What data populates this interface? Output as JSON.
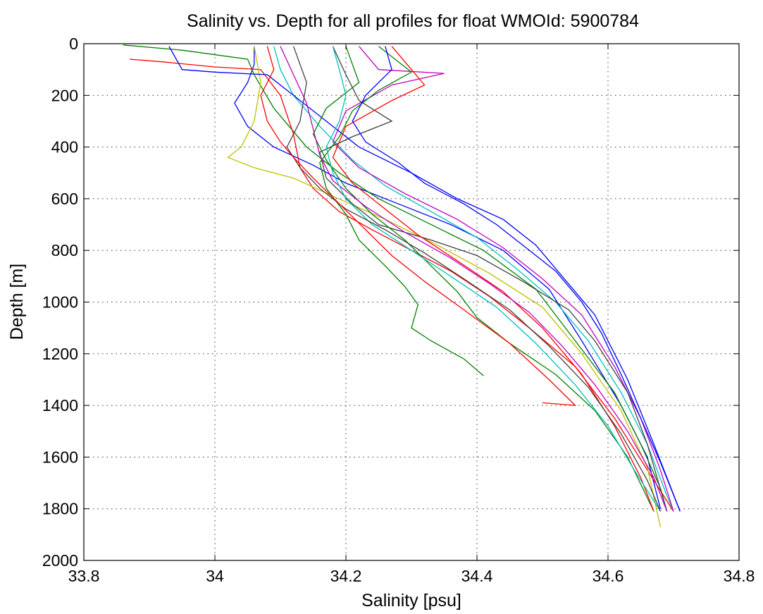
{
  "chart_data": {
    "type": "line",
    "title": "Salinity vs. Depth for all profiles for float WMOId: 5900784",
    "xlabel": "Salinity [psu]",
    "ylabel": "Depth [m]",
    "xlim": [
      33.8,
      34.8
    ],
    "ylim": [
      0,
      2000
    ],
    "y_reversed": true,
    "grid": true,
    "x_ticks": [
      "33.8",
      "34",
      "34.2",
      "34.4",
      "34.6",
      "34.8"
    ],
    "y_ticks": [
      "0",
      "200",
      "400",
      "600",
      "800",
      "1000",
      "1200",
      "1400",
      "1600",
      "1800",
      "2000"
    ],
    "colors": [
      "#0000ff",
      "#008000",
      "#ff0000",
      "#00bfbf",
      "#bf00bf",
      "#bfbf00",
      "#404040"
    ],
    "series": [
      {
        "color": "#0000ff",
        "values": [
          [
            34.06,
            10
          ],
          [
            34.06,
            80
          ],
          [
            34.05,
            150
          ],
          [
            34.03,
            230
          ],
          [
            34.05,
            320
          ],
          [
            34.09,
            400
          ],
          [
            34.15,
            470
          ],
          [
            34.2,
            540
          ],
          [
            34.28,
            620
          ],
          [
            34.36,
            700
          ],
          [
            34.44,
            800
          ],
          [
            34.51,
            950
          ],
          [
            34.56,
            1150
          ],
          [
            34.62,
            1400
          ],
          [
            34.66,
            1600
          ],
          [
            34.68,
            1800
          ]
        ]
      },
      {
        "color": "#008000",
        "values": [
          [
            33.86,
            5
          ],
          [
            33.95,
            25
          ],
          [
            34.05,
            60
          ],
          [
            34.06,
            120
          ],
          [
            34.09,
            250
          ],
          [
            34.14,
            400
          ],
          [
            34.19,
            500
          ],
          [
            34.25,
            600
          ],
          [
            34.33,
            700
          ],
          [
            34.41,
            800
          ],
          [
            34.49,
            950
          ],
          [
            34.55,
            1150
          ],
          [
            34.61,
            1350
          ],
          [
            34.65,
            1550
          ],
          [
            34.68,
            1720
          ],
          [
            34.69,
            1810
          ]
        ]
      },
      {
        "color": "#ff0000",
        "values": [
          [
            33.87,
            60
          ],
          [
            33.92,
            70
          ],
          [
            34.0,
            90
          ],
          [
            34.07,
            100
          ],
          [
            34.1,
            200
          ],
          [
            34.12,
            350
          ],
          [
            34.13,
            480
          ],
          [
            34.15,
            560
          ],
          [
            34.19,
            650
          ],
          [
            34.24,
            720
          ],
          [
            34.3,
            800
          ],
          [
            34.36,
            880
          ],
          [
            34.42,
            980
          ],
          [
            34.48,
            1100
          ],
          [
            34.55,
            1250
          ],
          [
            34.61,
            1450
          ],
          [
            34.66,
            1650
          ],
          [
            34.7,
            1810
          ]
        ]
      },
      {
        "color": "#00bfbf",
        "values": [
          [
            34.09,
            10
          ],
          [
            34.1,
            100
          ],
          [
            34.12,
            200
          ],
          [
            34.16,
            320
          ],
          [
            34.21,
            450
          ],
          [
            34.26,
            550
          ],
          [
            34.33,
            650
          ],
          [
            34.4,
            750
          ],
          [
            34.46,
            870
          ],
          [
            34.52,
            1000
          ],
          [
            34.57,
            1150
          ],
          [
            34.62,
            1350
          ],
          [
            34.66,
            1550
          ],
          [
            34.69,
            1750
          ],
          [
            34.7,
            1810
          ]
        ]
      },
      {
        "color": "#bf00bf",
        "values": [
          [
            34.22,
            10
          ],
          [
            34.25,
            100
          ],
          [
            34.35,
            115
          ],
          [
            34.27,
            160
          ],
          [
            34.2,
            260
          ],
          [
            34.18,
            380
          ],
          [
            34.22,
            480
          ],
          [
            34.29,
            580
          ],
          [
            34.37,
            680
          ],
          [
            34.44,
            790
          ],
          [
            34.5,
            910
          ],
          [
            34.56,
            1050
          ],
          [
            34.61,
            1250
          ],
          [
            34.65,
            1450
          ],
          [
            34.68,
            1650
          ],
          [
            34.7,
            1810
          ]
        ]
      },
      {
        "color": "#bfbf00",
        "values": [
          [
            34.06,
            10
          ],
          [
            34.07,
            150
          ],
          [
            34.06,
            300
          ],
          [
            34.04,
            400
          ],
          [
            34.02,
            440
          ],
          [
            34.06,
            480
          ],
          [
            34.12,
            520
          ],
          [
            34.18,
            590
          ],
          [
            34.26,
            680
          ],
          [
            34.34,
            780
          ],
          [
            34.42,
            890
          ],
          [
            34.5,
            1020
          ],
          [
            34.56,
            1200
          ],
          [
            34.62,
            1420
          ],
          [
            34.66,
            1640
          ],
          [
            34.68,
            1870
          ]
        ]
      },
      {
        "color": "#404040",
        "values": [
          [
            34.18,
            10
          ],
          [
            34.2,
            120
          ],
          [
            34.22,
            220
          ],
          [
            34.27,
            300
          ],
          [
            34.21,
            360
          ],
          [
            34.16,
            420
          ],
          [
            34.17,
            520
          ],
          [
            34.21,
            620
          ],
          [
            34.25,
            700
          ],
          [
            34.33,
            760
          ],
          [
            34.4,
            820
          ],
          [
            34.47,
            920
          ],
          [
            34.54,
            1030
          ],
          [
            34.58,
            1150
          ],
          [
            34.63,
            1350
          ],
          [
            34.66,
            1550
          ],
          [
            34.69,
            1810
          ]
        ]
      },
      {
        "color": "#0000ff",
        "values": [
          [
            33.93,
            10
          ],
          [
            33.95,
            100
          ],
          [
            34.0,
            110
          ],
          [
            34.08,
            120
          ],
          [
            34.12,
            200
          ],
          [
            34.17,
            300
          ],
          [
            34.22,
            400
          ],
          [
            34.3,
            500
          ],
          [
            34.37,
            600
          ],
          [
            34.44,
            680
          ],
          [
            34.49,
            780
          ],
          [
            34.53,
            900
          ],
          [
            34.58,
            1050
          ],
          [
            34.63,
            1300
          ],
          [
            34.67,
            1550
          ],
          [
            34.71,
            1810
          ]
        ]
      },
      {
        "color": "#008000",
        "values": [
          [
            34.2,
            10
          ],
          [
            34.22,
            150
          ],
          [
            34.17,
            250
          ],
          [
            34.15,
            350
          ],
          [
            34.17,
            450
          ],
          [
            34.2,
            560
          ],
          [
            34.24,
            660
          ],
          [
            34.29,
            760
          ],
          [
            34.33,
            860
          ],
          [
            34.37,
            960
          ],
          [
            34.4,
            1060
          ],
          [
            34.45,
            1160
          ],
          [
            34.52,
            1280
          ],
          [
            34.58,
            1420
          ],
          [
            34.63,
            1600
          ],
          [
            34.67,
            1810
          ]
        ]
      },
      {
        "color": "#ff0000",
        "values": [
          [
            34.27,
            10
          ],
          [
            34.3,
            100
          ],
          [
            34.32,
            160
          ],
          [
            34.27,
            220
          ],
          [
            34.2,
            320
          ],
          [
            34.18,
            440
          ],
          [
            34.21,
            540
          ],
          [
            34.26,
            640
          ],
          [
            34.31,
            740
          ],
          [
            34.37,
            840
          ],
          [
            34.44,
            960
          ],
          [
            34.5,
            1100
          ],
          [
            34.56,
            1280
          ],
          [
            34.61,
            1480
          ],
          [
            34.65,
            1680
          ],
          [
            34.67,
            1810
          ]
        ]
      },
      {
        "color": "#008000",
        "values": [
          [
            34.25,
            10
          ],
          [
            34.3,
            110
          ],
          [
            34.25,
            180
          ],
          [
            34.21,
            260
          ],
          [
            34.19,
            360
          ],
          [
            34.16,
            460
          ],
          [
            34.17,
            560
          ],
          [
            34.2,
            660
          ],
          [
            34.22,
            760
          ],
          [
            34.26,
            860
          ],
          [
            34.29,
            940
          ],
          [
            34.31,
            1010
          ],
          [
            34.3,
            1100
          ],
          [
            34.33,
            1150
          ],
          [
            34.38,
            1220
          ],
          [
            34.41,
            1285
          ]
        ]
      },
      {
        "color": "#0000ff",
        "values": [
          [
            34.26,
            10
          ],
          [
            34.27,
            100
          ],
          [
            34.23,
            200
          ],
          [
            34.21,
            300
          ],
          [
            34.23,
            380
          ],
          [
            34.28,
            460
          ],
          [
            34.32,
            540
          ],
          [
            34.38,
            620
          ],
          [
            34.43,
            700
          ],
          [
            34.47,
            780
          ],
          [
            34.52,
            880
          ],
          [
            34.56,
            1000
          ],
          [
            34.59,
            1120
          ],
          [
            34.62,
            1280
          ],
          [
            34.65,
            1450
          ],
          [
            34.68,
            1620
          ],
          [
            34.71,
            1810
          ]
        ]
      },
      {
        "color": "#bf00bf",
        "values": [
          [
            34.1,
            10
          ],
          [
            34.12,
            120
          ],
          [
            34.14,
            230
          ],
          [
            34.15,
            330
          ],
          [
            34.16,
            430
          ],
          [
            34.18,
            530
          ],
          [
            34.23,
            630
          ],
          [
            34.29,
            730
          ],
          [
            34.36,
            830
          ],
          [
            34.42,
            930
          ],
          [
            34.48,
            1040
          ],
          [
            34.53,
            1170
          ],
          [
            34.58,
            1320
          ],
          [
            34.63,
            1500
          ],
          [
            34.67,
            1680
          ],
          [
            34.69,
            1810
          ]
        ]
      },
      {
        "color": "#00bfbf",
        "values": [
          [
            34.18,
            10
          ],
          [
            34.19,
            100
          ],
          [
            34.2,
            200
          ],
          [
            34.19,
            300
          ],
          [
            34.17,
            400
          ],
          [
            34.18,
            500
          ],
          [
            34.2,
            600
          ],
          [
            34.24,
            700
          ],
          [
            34.3,
            800
          ],
          [
            34.36,
            900
          ],
          [
            34.43,
            1020
          ],
          [
            34.49,
            1160
          ],
          [
            34.55,
            1320
          ],
          [
            34.6,
            1480
          ],
          [
            34.64,
            1650
          ],
          [
            34.68,
            1810
          ]
        ]
      },
      {
        "color": "#404040",
        "values": [
          [
            34.12,
            10
          ],
          [
            34.14,
            150
          ],
          [
            34.13,
            300
          ],
          [
            34.11,
            400
          ],
          [
            34.13,
            480
          ],
          [
            34.16,
            560
          ],
          [
            34.2,
            640
          ],
          [
            34.26,
            720
          ],
          [
            34.32,
            810
          ],
          [
            34.38,
            910
          ],
          [
            34.45,
            1030
          ],
          [
            34.51,
            1170
          ],
          [
            34.57,
            1330
          ],
          [
            34.62,
            1510
          ],
          [
            34.66,
            1690
          ],
          [
            34.68,
            1810
          ]
        ]
      },
      {
        "color": "#ff0000",
        "values": [
          [
            34.08,
            10
          ],
          [
            34.09,
            100
          ],
          [
            34.07,
            200
          ],
          [
            34.08,
            300
          ],
          [
            34.1,
            380
          ],
          [
            34.12,
            440
          ],
          [
            34.15,
            520
          ],
          [
            34.19,
            620
          ],
          [
            34.23,
            720
          ],
          [
            34.27,
            820
          ],
          [
            34.32,
            920
          ],
          [
            34.38,
            1030
          ],
          [
            34.45,
            1160
          ],
          [
            34.51,
            1300
          ],
          [
            34.55,
            1400
          ],
          [
            34.5,
            1390
          ]
        ]
      }
    ]
  }
}
